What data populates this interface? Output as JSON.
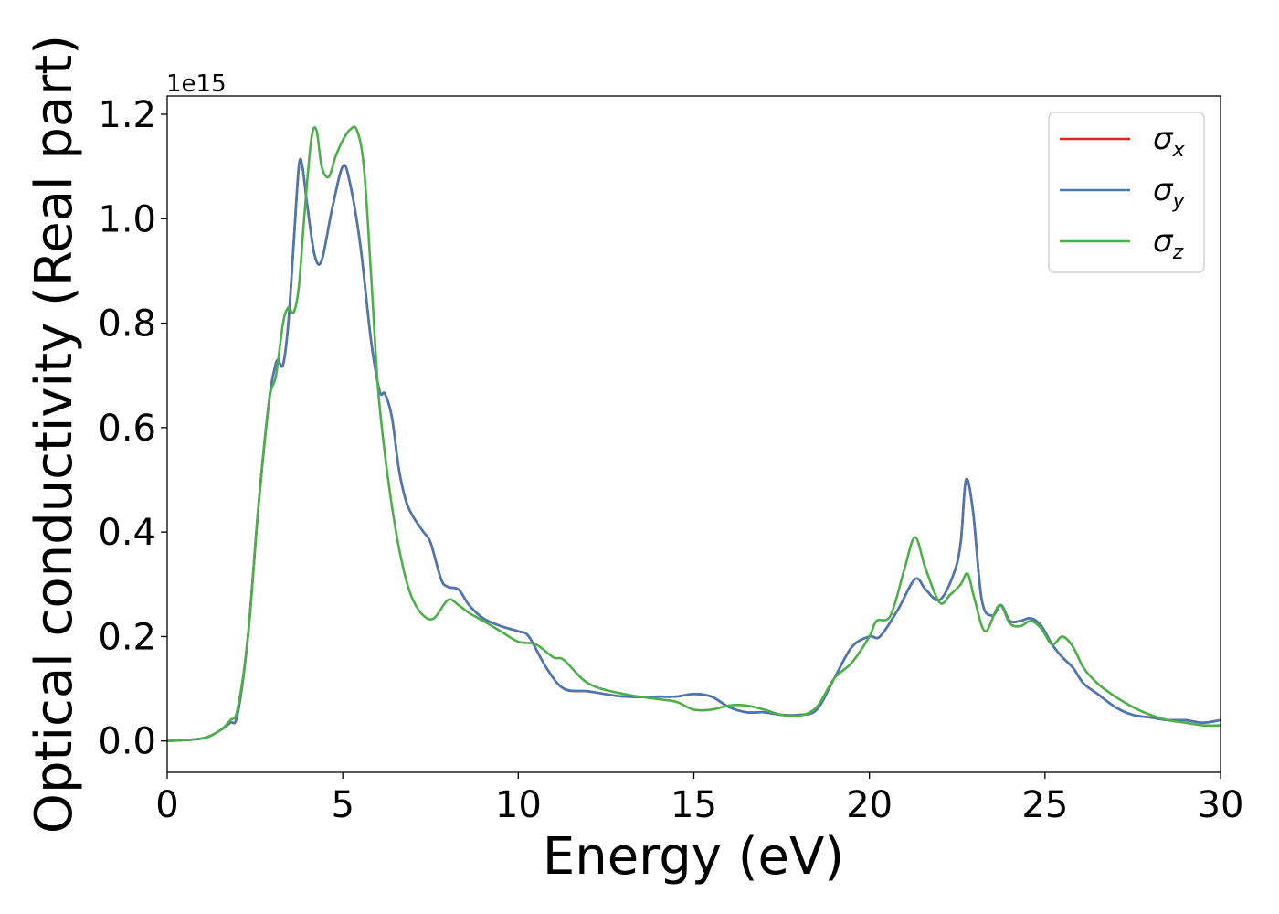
{
  "chart_data": {
    "type": "line",
    "xlabel": "Energy (eV)",
    "ylabel": "Optical conductivity (Real part)",
    "y_offset_text": "1e15",
    "y_scale_factor": 1000000000000000.0,
    "xlim": [
      0,
      30
    ],
    "ylim": [
      -0.06,
      1.235
    ],
    "xticks": [
      0,
      5,
      10,
      15,
      20,
      25,
      30
    ],
    "xtick_labels": [
      "0",
      "5",
      "10",
      "15",
      "20",
      "25",
      "30"
    ],
    "yticks": [
      0.0,
      0.2,
      0.4,
      0.6,
      0.8,
      1.0,
      1.2
    ],
    "ytick_labels": [
      "0.0",
      "0.2",
      "0.4",
      "0.6",
      "0.8",
      "1.0",
      "1.2"
    ],
    "grid": false,
    "legend_position": "top-right",
    "series": [
      {
        "name": "σx",
        "symbol": "σ",
        "subscript": "x",
        "color": "#d62728",
        "x": [
          0,
          1.0,
          1.5,
          1.8,
          2.0,
          2.3,
          2.6,
          2.9,
          3.05,
          3.15,
          3.3,
          3.45,
          3.6,
          3.75,
          3.85,
          4.0,
          4.2,
          4.4,
          4.7,
          5.0,
          5.2,
          5.5,
          5.8,
          6.05,
          6.2,
          6.4,
          6.6,
          6.8,
          7.0,
          7.3,
          7.5,
          7.8,
          8.0,
          8.3,
          8.6,
          9.0,
          9.5,
          10.0,
          10.3,
          10.8,
          11.3,
          12.0,
          13.0,
          14.0,
          14.5,
          15.0,
          15.5,
          16.0,
          16.5,
          17.0,
          17.5,
          18.0,
          18.5,
          19.0,
          19.5,
          20.0,
          20.3,
          20.8,
          21.3,
          21.6,
          22.0,
          22.4,
          22.6,
          22.75,
          22.95,
          23.2,
          23.5,
          23.75,
          24.0,
          24.3,
          24.6,
          24.9,
          25.2,
          25.5,
          25.8,
          26.1,
          26.5,
          27.0,
          27.5,
          28.0,
          28.5,
          29.0,
          29.5,
          30.0
        ],
        "y": [
          0.0,
          0.005,
          0.02,
          0.035,
          0.05,
          0.2,
          0.45,
          0.65,
          0.71,
          0.73,
          0.72,
          0.8,
          0.95,
          1.1,
          1.1,
          1.02,
          0.93,
          0.92,
          1.02,
          1.1,
          1.07,
          0.95,
          0.77,
          0.67,
          0.665,
          0.62,
          0.52,
          0.46,
          0.43,
          0.4,
          0.38,
          0.31,
          0.295,
          0.29,
          0.26,
          0.235,
          0.22,
          0.21,
          0.2,
          0.14,
          0.1,
          0.095,
          0.085,
          0.085,
          0.085,
          0.09,
          0.085,
          0.065,
          0.055,
          0.055,
          0.05,
          0.05,
          0.06,
          0.12,
          0.18,
          0.2,
          0.2,
          0.25,
          0.31,
          0.29,
          0.27,
          0.32,
          0.38,
          0.5,
          0.44,
          0.27,
          0.24,
          0.26,
          0.23,
          0.23,
          0.235,
          0.22,
          0.185,
          0.16,
          0.14,
          0.11,
          0.09,
          0.065,
          0.05,
          0.045,
          0.04,
          0.04,
          0.035,
          0.04
        ]
      },
      {
        "name": "σy",
        "symbol": "σ",
        "subscript": "y",
        "color": "#4a78b0",
        "x": [
          0,
          1.0,
          1.5,
          1.8,
          2.0,
          2.3,
          2.6,
          2.9,
          3.05,
          3.15,
          3.3,
          3.45,
          3.6,
          3.75,
          3.85,
          4.0,
          4.2,
          4.4,
          4.7,
          5.0,
          5.2,
          5.5,
          5.8,
          6.05,
          6.2,
          6.4,
          6.6,
          6.8,
          7.0,
          7.3,
          7.5,
          7.8,
          8.0,
          8.3,
          8.6,
          9.0,
          9.5,
          10.0,
          10.3,
          10.8,
          11.3,
          12.0,
          13.0,
          14.0,
          14.5,
          15.0,
          15.5,
          16.0,
          16.5,
          17.0,
          17.5,
          18.0,
          18.5,
          19.0,
          19.5,
          20.0,
          20.3,
          20.8,
          21.3,
          21.6,
          22.0,
          22.4,
          22.6,
          22.75,
          22.95,
          23.2,
          23.5,
          23.75,
          24.0,
          24.3,
          24.6,
          24.9,
          25.2,
          25.5,
          25.8,
          26.1,
          26.5,
          27.0,
          27.5,
          28.0,
          28.5,
          29.0,
          29.5,
          30.0
        ],
        "y": [
          0.0,
          0.005,
          0.02,
          0.035,
          0.05,
          0.2,
          0.45,
          0.65,
          0.71,
          0.73,
          0.72,
          0.8,
          0.95,
          1.1,
          1.1,
          1.02,
          0.93,
          0.92,
          1.02,
          1.1,
          1.07,
          0.95,
          0.77,
          0.67,
          0.665,
          0.62,
          0.52,
          0.46,
          0.43,
          0.4,
          0.38,
          0.31,
          0.295,
          0.29,
          0.26,
          0.235,
          0.22,
          0.21,
          0.2,
          0.14,
          0.1,
          0.095,
          0.085,
          0.085,
          0.085,
          0.09,
          0.085,
          0.065,
          0.055,
          0.055,
          0.05,
          0.05,
          0.06,
          0.12,
          0.18,
          0.2,
          0.2,
          0.25,
          0.31,
          0.29,
          0.27,
          0.32,
          0.38,
          0.5,
          0.44,
          0.27,
          0.24,
          0.26,
          0.23,
          0.23,
          0.235,
          0.22,
          0.185,
          0.16,
          0.14,
          0.11,
          0.09,
          0.065,
          0.05,
          0.045,
          0.04,
          0.04,
          0.035,
          0.04
        ]
      },
      {
        "name": "σz",
        "symbol": "σ",
        "subscript": "z",
        "color": "#4daf4a",
        "x": [
          0,
          1.0,
          1.5,
          1.8,
          2.0,
          2.3,
          2.6,
          2.9,
          3.1,
          3.3,
          3.45,
          3.6,
          3.75,
          3.9,
          4.1,
          4.25,
          4.4,
          4.6,
          4.8,
          5.0,
          5.2,
          5.4,
          5.6,
          5.8,
          6.0,
          6.2,
          6.4,
          6.6,
          6.8,
          7.0,
          7.3,
          7.6,
          8.0,
          8.3,
          8.6,
          9.0,
          9.5,
          10.0,
          10.5,
          11.0,
          11.3,
          12.0,
          13.0,
          14.0,
          14.5,
          15.0,
          15.5,
          16.0,
          16.5,
          17.0,
          17.5,
          18.0,
          18.5,
          19.0,
          19.5,
          20.0,
          20.2,
          20.6,
          21.0,
          21.3,
          21.6,
          22.0,
          22.3,
          22.6,
          22.8,
          23.0,
          23.3,
          23.7,
          24.0,
          24.3,
          24.6,
          24.9,
          25.2,
          25.5,
          25.8,
          26.1,
          26.5,
          27.0,
          27.5,
          28.0,
          28.5,
          29.0,
          29.5,
          30.0
        ],
        "y": [
          0.0,
          0.005,
          0.02,
          0.04,
          0.06,
          0.2,
          0.45,
          0.65,
          0.7,
          0.8,
          0.83,
          0.82,
          0.87,
          1.0,
          1.15,
          1.17,
          1.1,
          1.08,
          1.12,
          1.15,
          1.17,
          1.17,
          1.1,
          0.9,
          0.68,
          0.55,
          0.45,
          0.37,
          0.31,
          0.27,
          0.24,
          0.235,
          0.27,
          0.26,
          0.245,
          0.23,
          0.21,
          0.19,
          0.185,
          0.16,
          0.155,
          0.11,
          0.09,
          0.08,
          0.075,
          0.06,
          0.06,
          0.068,
          0.068,
          0.06,
          0.05,
          0.048,
          0.065,
          0.12,
          0.15,
          0.2,
          0.23,
          0.24,
          0.33,
          0.39,
          0.33,
          0.265,
          0.28,
          0.3,
          0.32,
          0.27,
          0.21,
          0.26,
          0.225,
          0.22,
          0.23,
          0.215,
          0.185,
          0.2,
          0.18,
          0.14,
          0.11,
          0.085,
          0.065,
          0.05,
          0.04,
          0.035,
          0.03,
          0.03
        ]
      }
    ]
  }
}
